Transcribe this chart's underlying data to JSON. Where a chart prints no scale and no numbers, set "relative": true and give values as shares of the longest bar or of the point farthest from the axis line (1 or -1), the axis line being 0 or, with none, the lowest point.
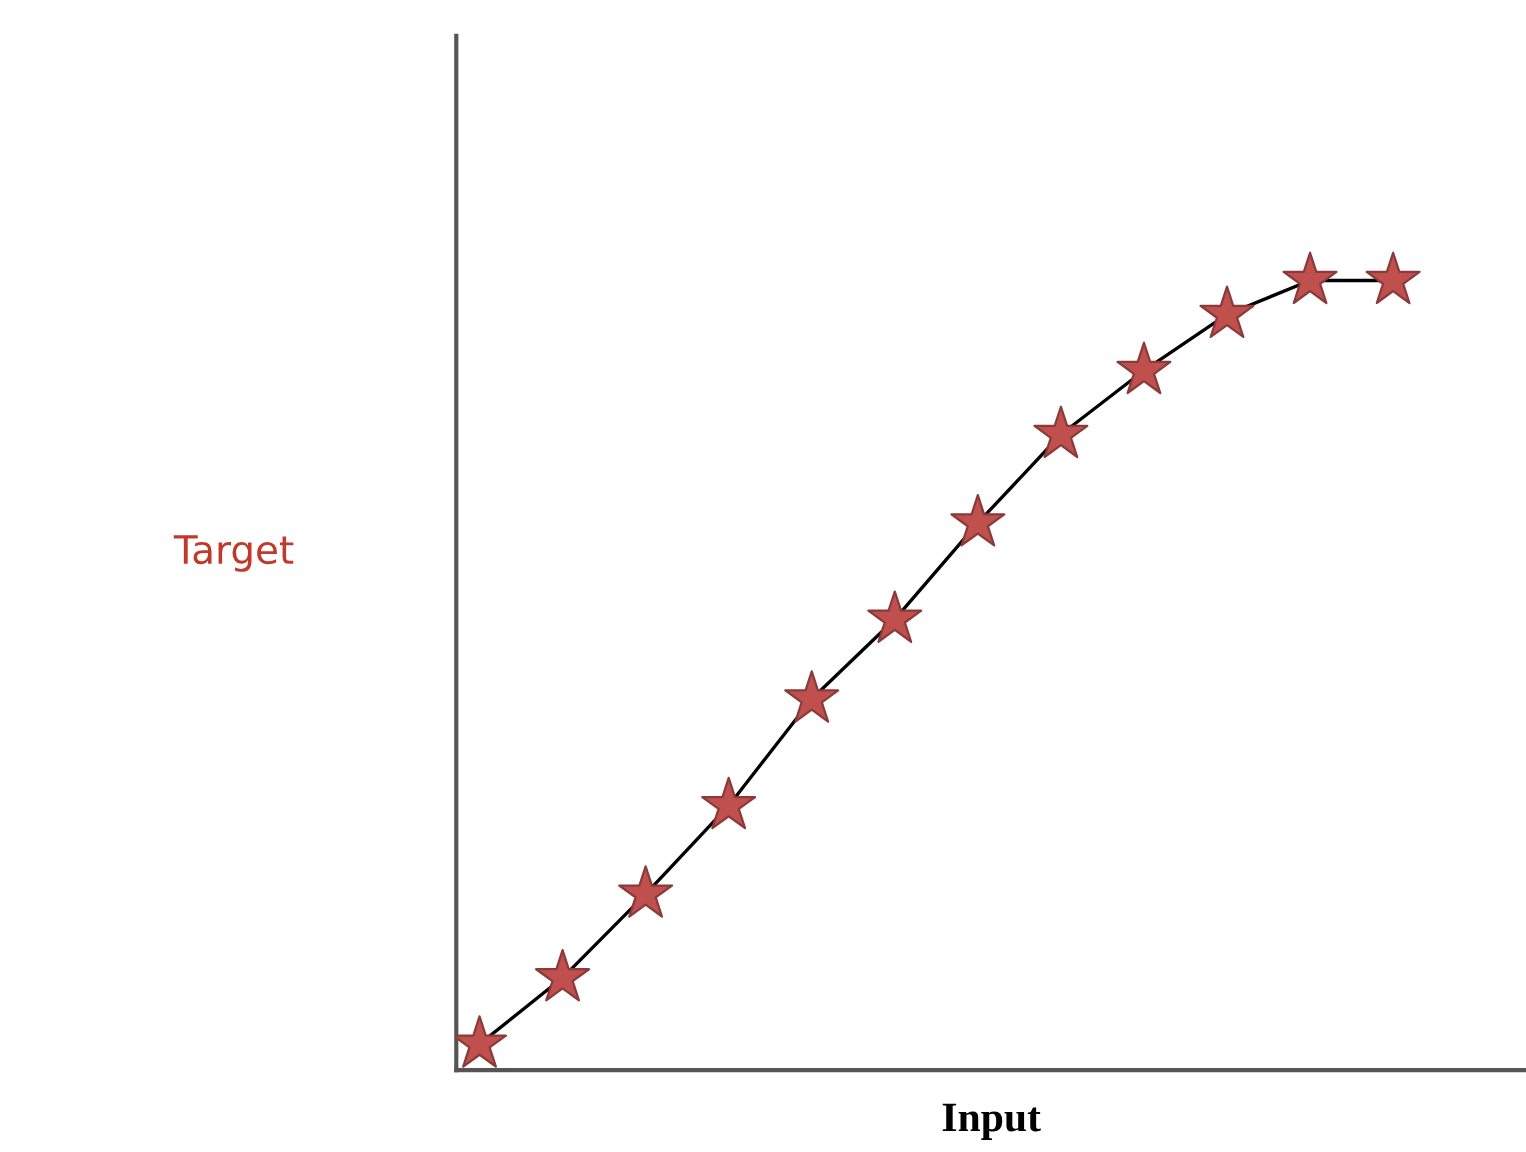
{
  "chart_data": {
    "type": "line",
    "relative": true,
    "xlabel": "Input",
    "ylabel": "Target",
    "marker": "star",
    "grid": false,
    "legend": false,
    "categories": [
      null,
      null,
      null,
      null,
      null,
      null,
      null,
      null,
      null,
      null,
      null,
      null
    ],
    "series": [
      {
        "color": "#000000",
        "colors": [
          "#c0504d",
          "#c0504d",
          "#c0504d",
          "#c0504d",
          "#c0504d",
          "#c0504d",
          "#c0504d",
          "#c0504d",
          "#c0504d",
          "#c0504d",
          "#c0504d",
          "#c0504d"
        ],
        "values": [
          0.033,
          0.117,
          0.223,
          0.335,
          0.47,
          0.571,
          0.693,
          0.805,
          0.886,
          0.957,
          1,
          1
        ]
      }
    ]
  }
}
